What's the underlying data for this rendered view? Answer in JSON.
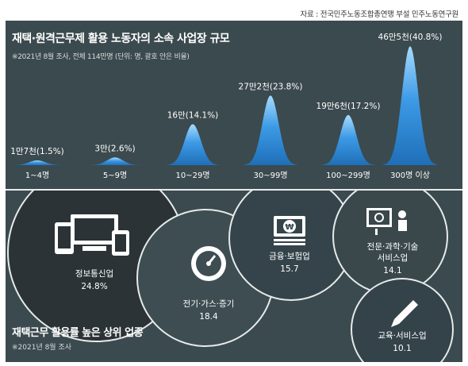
{
  "source": "자료 : 전국민주노동조합총연맹 부설 민주노동연구원",
  "icons": [
    "computer-devices-icon",
    "gauge-icon",
    "banknote-icon",
    "presentation-icon",
    "pencil-icon"
  ],
  "colors": {
    "panel": "#3b4a4e",
    "bell": "#2f8fd8",
    "bell_light": "#8fcfff",
    "industry_circle": "#2b3336"
  },
  "chart_data": [
    {
      "type": "area",
      "title": "재택·원격근무제 활용 노동자의 소속 사업장 규모",
      "subtitle": "※2021년 8월 조사, 전체 114만명 (단위: 명, 괄호 안은 비율)",
      "categories": [
        "1~4명",
        "5~9명",
        "10~29명",
        "30~99명",
        "100~299명",
        "300명 이상"
      ],
      "values": [
        17000,
        30000,
        160000,
        272000,
        196000,
        465000
      ],
      "percent": [
        1.5,
        2.6,
        14.1,
        23.8,
        17.2,
        40.8
      ],
      "labels": [
        "1만7천(1.5%)",
        "3만(2.6%)",
        "16만(14.1%)",
        "27만2천(23.8%)",
        "19만6천(17.2%)",
        "46만5천(40.8%)"
      ]
    },
    {
      "type": "bubble",
      "title": "재택근무 활용률 높은 상위 업종",
      "subtitle": "※2021년 8월 조사",
      "categories": [
        "정보통신업",
        "전기·가스·증기",
        "금융·보험업",
        "전문·과학·기술 서비스업",
        "교육·서비스업"
      ],
      "values": [
        24.8,
        18.4,
        15.7,
        14.1,
        10.1
      ],
      "value_labels": [
        "24.8%",
        "18.4",
        "15.7",
        "14.1",
        "10.1"
      ]
    }
  ]
}
